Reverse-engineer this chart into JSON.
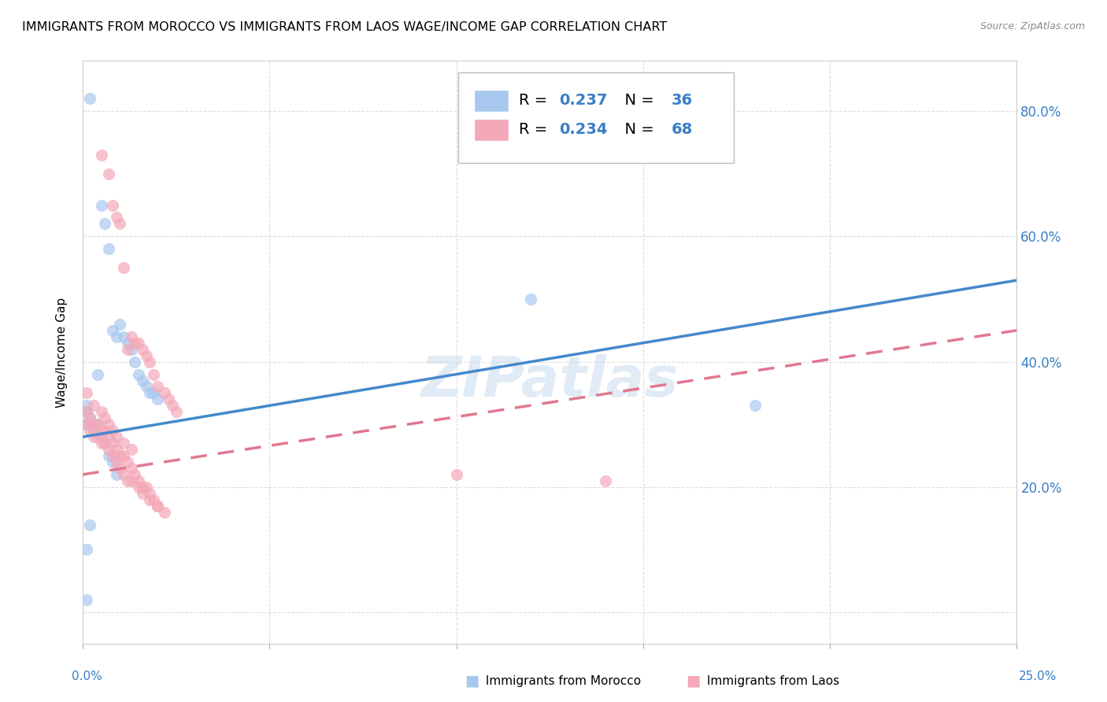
{
  "title": "IMMIGRANTS FROM MOROCCO VS IMMIGRANTS FROM LAOS WAGE/INCOME GAP CORRELATION CHART",
  "source": "Source: ZipAtlas.com",
  "ylabel": "Wage/Income Gap",
  "yticks": [
    0.0,
    0.2,
    0.4,
    0.6,
    0.8
  ],
  "ytick_labels": [
    "",
    "20.0%",
    "40.0%",
    "60.0%",
    "80.0%"
  ],
  "xlim": [
    0.0,
    0.25
  ],
  "ylim": [
    -0.05,
    0.88
  ],
  "morocco_R": 0.237,
  "morocco_N": 36,
  "laos_R": 0.234,
  "laos_N": 68,
  "morocco_color": "#A8C8F0",
  "laos_color": "#F4A8B8",
  "morocco_line_color": "#4488CC",
  "laos_line_color": "#E07890",
  "background_color": "#FFFFFF",
  "grid_color": "#DDDDDD",
  "title_fontsize": 12,
  "watermark_text": "ZIPatlas",
  "morocco_line_x0": 0.0,
  "morocco_line_y0": 0.28,
  "morocco_line_x1": 0.25,
  "morocco_line_y1": 0.53,
  "laos_line_x0": 0.0,
  "laos_line_y0": 0.22,
  "laos_line_x1": 0.25,
  "laos_line_y1": 0.45,
  "morocco_scatter_x": [
    0.002,
    0.005,
    0.006,
    0.007,
    0.008,
    0.009,
    0.01,
    0.011,
    0.012,
    0.013,
    0.014,
    0.015,
    0.016,
    0.017,
    0.018,
    0.019,
    0.02,
    0.001,
    0.001,
    0.002,
    0.003,
    0.004,
    0.005,
    0.006,
    0.007,
    0.008,
    0.009,
    0.003,
    0.004,
    0.001,
    0.002,
    0.12,
    0.001,
    0.002,
    0.18,
    0.001
  ],
  "morocco_scatter_y": [
    0.82,
    0.65,
    0.62,
    0.58,
    0.45,
    0.44,
    0.46,
    0.44,
    0.43,
    0.42,
    0.4,
    0.38,
    0.37,
    0.36,
    0.35,
    0.35,
    0.34,
    0.33,
    0.32,
    0.31,
    0.3,
    0.3,
    0.28,
    0.27,
    0.25,
    0.24,
    0.22,
    0.29,
    0.38,
    0.3,
    0.3,
    0.5,
    0.1,
    0.14,
    0.33,
    0.02
  ],
  "laos_scatter_x": [
    0.005,
    0.007,
    0.008,
    0.009,
    0.01,
    0.011,
    0.012,
    0.013,
    0.014,
    0.015,
    0.016,
    0.017,
    0.018,
    0.019,
    0.02,
    0.022,
    0.023,
    0.024,
    0.025,
    0.001,
    0.002,
    0.003,
    0.004,
    0.005,
    0.006,
    0.007,
    0.008,
    0.009,
    0.01,
    0.011,
    0.012,
    0.013,
    0.014,
    0.015,
    0.016,
    0.017,
    0.018,
    0.019,
    0.02,
    0.001,
    0.002,
    0.003,
    0.004,
    0.005,
    0.006,
    0.007,
    0.008,
    0.009,
    0.01,
    0.011,
    0.012,
    0.013,
    0.015,
    0.016,
    0.018,
    0.02,
    0.022,
    0.14,
    0.001,
    0.003,
    0.005,
    0.006,
    0.007,
    0.008,
    0.009,
    0.011,
    0.013,
    0.1
  ],
  "laos_scatter_y": [
    0.73,
    0.7,
    0.65,
    0.63,
    0.62,
    0.55,
    0.42,
    0.44,
    0.43,
    0.43,
    0.42,
    0.41,
    0.4,
    0.38,
    0.36,
    0.35,
    0.34,
    0.33,
    0.32,
    0.32,
    0.31,
    0.3,
    0.3,
    0.29,
    0.29,
    0.28,
    0.27,
    0.26,
    0.25,
    0.25,
    0.24,
    0.23,
    0.22,
    0.21,
    0.2,
    0.2,
    0.19,
    0.18,
    0.17,
    0.3,
    0.29,
    0.28,
    0.28,
    0.27,
    0.27,
    0.26,
    0.25,
    0.24,
    0.23,
    0.22,
    0.21,
    0.21,
    0.2,
    0.19,
    0.18,
    0.17,
    0.16,
    0.21,
    0.35,
    0.33,
    0.32,
    0.31,
    0.3,
    0.29,
    0.28,
    0.27,
    0.26,
    0.22
  ]
}
